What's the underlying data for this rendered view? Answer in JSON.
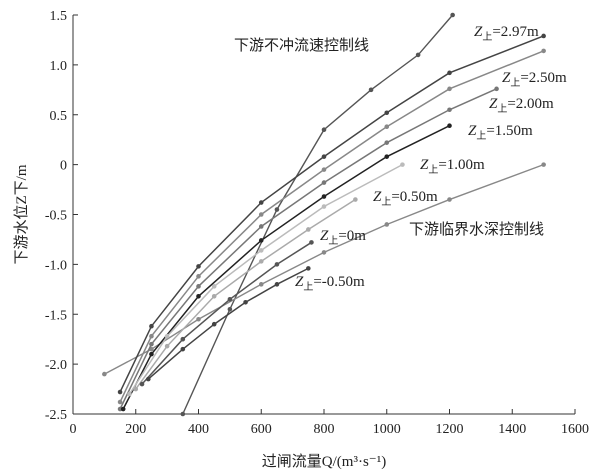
{
  "chart_data": {
    "type": "line",
    "xlabel": "过闸流量Q/(m³·s⁻¹)",
    "ylabel": "下游水位Z下/m",
    "xlim": [
      0,
      1600
    ],
    "ylim": [
      -2.5,
      1.5
    ],
    "xticks": [
      "0",
      "200",
      "400",
      "600",
      "800",
      "1000",
      "1200",
      "1400",
      "1600"
    ],
    "yticks": [
      "-2.5",
      "-2.0",
      "-1.5",
      "-1.0",
      "-0.5",
      "0",
      "0.5",
      "1.0",
      "1.5"
    ],
    "grid": false,
    "series": [
      {
        "name": "Z上=2.97m",
        "label_main": "Z",
        "label_sub": "上",
        "label_tail": "=2.97m",
        "color": "#444444",
        "x": [
          150,
          250,
          400,
          600,
          800,
          1000,
          1200,
          1500
        ],
        "y": [
          -2.28,
          -1.62,
          -1.02,
          -0.38,
          0.08,
          0.52,
          0.92,
          1.29
        ]
      },
      {
        "name": "Z上=2.50m",
        "label_main": "Z",
        "label_sub": "上",
        "label_tail": "=2.50m",
        "color": "#888888",
        "x": [
          150,
          250,
          400,
          600,
          800,
          1000,
          1200,
          1500
        ],
        "y": [
          -2.38,
          -1.72,
          -1.12,
          -0.5,
          -0.05,
          0.38,
          0.76,
          1.14
        ]
      },
      {
        "name": "Z上=2.00m",
        "label_main": "Z",
        "label_sub": "上",
        "label_tail": "=2.00m",
        "color": "#777777",
        "x": [
          150,
          250,
          400,
          600,
          800,
          1000,
          1200,
          1350
        ],
        "y": [
          -2.45,
          -1.8,
          -1.22,
          -0.62,
          -0.18,
          0.22,
          0.55,
          0.76
        ]
      },
      {
        "name": "Z上=1.50m",
        "label_main": "Z",
        "label_sub": "上",
        "label_tail": "=1.50m",
        "color": "#222222",
        "x": [
          160,
          250,
          400,
          600,
          800,
          1000,
          1200
        ],
        "y": [
          -2.45,
          -1.9,
          -1.32,
          -0.76,
          -0.32,
          0.08,
          0.39
        ]
      },
      {
        "name": "Z上=1.00m",
        "label_main": "Z",
        "label_sub": "上",
        "label_tail": "=1.00m",
        "color": "#bbbbbb",
        "x": [
          180,
          300,
          450,
          600,
          800,
          1050
        ],
        "y": [
          -2.3,
          -1.72,
          -1.22,
          -0.86,
          -0.42,
          0.0
        ]
      },
      {
        "name": "Z上=0.50m",
        "label_main": "Z",
        "label_sub": "上",
        "label_tail": "=0.50m",
        "color": "#aaaaaa",
        "x": [
          200,
          300,
          450,
          600,
          750,
          900
        ],
        "y": [
          -2.25,
          -1.82,
          -1.32,
          -0.97,
          -0.65,
          -0.35
        ]
      },
      {
        "name": "Z上=0m",
        "label_main": "Z",
        "label_sub": "上",
        "label_tail": "=0m",
        "color": "#555555",
        "x": [
          220,
          350,
          500,
          650,
          760
        ],
        "y": [
          -2.2,
          -1.75,
          -1.35,
          -1.0,
          -0.78
        ]
      },
      {
        "name": "Z上=-0.50m",
        "label_main": "Z",
        "label_sub": "上",
        "label_tail": "=-0.50m",
        "color": "#444444",
        "x": [
          240,
          350,
          450,
          550,
          650,
          750
        ],
        "y": [
          -2.15,
          -1.85,
          -1.6,
          -1.38,
          -1.2,
          -1.04
        ]
      }
    ],
    "control_lines": [
      {
        "name": "下游不冲流速控制线",
        "color": "#555555",
        "x": [
          350,
          500,
          650,
          800,
          950,
          1100,
          1210
        ],
        "y": [
          -2.5,
          -1.45,
          -0.45,
          0.35,
          0.75,
          1.1,
          1.5
        ]
      },
      {
        "name": "下游临界水深控制线",
        "color": "#888888",
        "x": [
          100,
          250,
          400,
          600,
          800,
          1000,
          1200,
          1500
        ],
        "y": [
          -2.1,
          -1.85,
          -1.55,
          -1.2,
          -0.88,
          -0.6,
          -0.35,
          0.0
        ]
      }
    ]
  }
}
